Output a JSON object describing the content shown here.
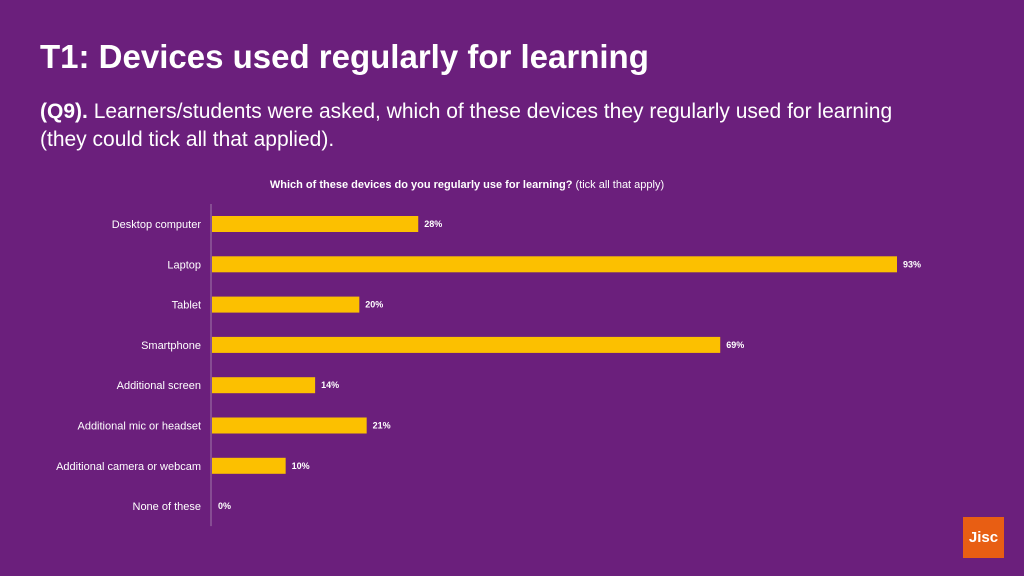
{
  "header": {
    "title": "T1: Devices used regularly for learning",
    "question_tag": "(Q9).",
    "description": "Learners/students were asked, which of these devices they regularly used for learning (they could tick all that applied)."
  },
  "logo": {
    "text": "Jisc",
    "color": "#e85e13"
  },
  "colors": {
    "background": "#6b1f7c",
    "bar": "#fcc000",
    "text": "#ffffff"
  },
  "chart_data": {
    "type": "bar",
    "orientation": "horizontal",
    "title": "Which of these devices do you regularly use for learning?",
    "title_note": "(tick all that apply)",
    "categories": [
      "Desktop computer",
      "Laptop",
      "Tablet",
      "Smartphone",
      "Additional screen",
      "Additional mic or headset",
      "Additional camera or webcam",
      "None of these"
    ],
    "values": [
      28,
      93,
      20,
      69,
      14,
      21,
      10,
      0
    ],
    "value_suffix": "%",
    "xlim": [
      0,
      100
    ],
    "xlabel": "",
    "ylabel": "",
    "grid": false,
    "legend": "none"
  }
}
